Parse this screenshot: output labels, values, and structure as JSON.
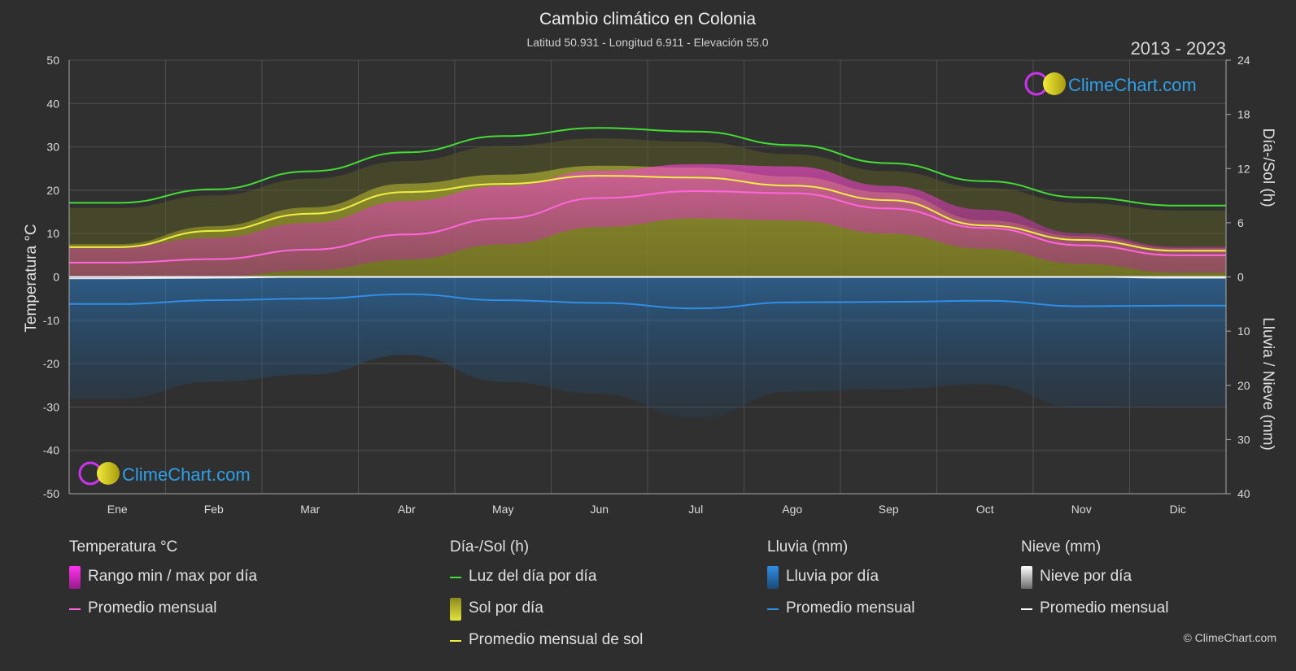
{
  "title": "Cambio climático en Colonia",
  "subtitle": "Latitud 50.931 - Longitud 6.911 - Elevación 55.0",
  "year_range": "2013 - 2023",
  "logo_text": "ClimeChart.com",
  "copyright": "© ClimeChart.com",
  "colors": {
    "background": "#2e2e2e",
    "daylight": "#44dd33",
    "sunshine_avg": "#eeee44",
    "temp_avg": "#ff66dd",
    "rain_avg": "#2f8ee6",
    "snow_avg": "#ffffff",
    "temp_range": "#ee33cc",
    "sun_fill": "#a6a628",
    "rain_fill": "#1f6fb0",
    "logo_text": "#2f9fe8"
  },
  "chart_data": {
    "type": "area",
    "x_categories": [
      "Ene",
      "Feb",
      "Mar",
      "Abr",
      "May",
      "Jun",
      "Jul",
      "Ago",
      "Sep",
      "Oct",
      "Nov",
      "Dic"
    ],
    "y_left": {
      "label": "Temperatura °C",
      "range": [
        -50,
        50
      ],
      "ticks": [
        "50",
        "40",
        "30",
        "20",
        "10",
        "0",
        "-10",
        "-20",
        "-30",
        "-40",
        "-50"
      ]
    },
    "y_right_top": {
      "label": "Día-/Sol (h)",
      "range": [
        0,
        24
      ],
      "ticks": [
        "24",
        "18",
        "12",
        "6",
        "0"
      ]
    },
    "y_right_bottom": {
      "label": "Lluvia / Nieve (mm)",
      "range": [
        0,
        40
      ],
      "ticks": [
        "0",
        "10",
        "20",
        "30",
        "40"
      ]
    },
    "grid": true,
    "series": [
      {
        "name": "Luz del día por día",
        "axis": "hours",
        "values": [
          8.2,
          9.7,
          11.7,
          13.8,
          15.6,
          16.5,
          16.1,
          14.6,
          12.6,
          10.6,
          8.8,
          7.9
        ]
      },
      {
        "name": "Promedio mensual de sol",
        "axis": "hours",
        "values": [
          3.3,
          5.1,
          7.0,
          9.4,
          10.3,
          11.2,
          11.0,
          10.1,
          8.5,
          5.7,
          4.1,
          2.9
        ]
      },
      {
        "name": "Temperatura promedio mensual",
        "axis": "temp",
        "values": [
          3.3,
          4.1,
          6.3,
          9.8,
          13.5,
          18.2,
          19.8,
          19.3,
          15.8,
          11.3,
          7.3,
          5.0
        ]
      },
      {
        "name": "Temperatura máxima diaria",
        "axis": "temp",
        "values": [
          7.0,
          9.0,
          12.5,
          17.5,
          21.0,
          24.5,
          26.0,
          25.5,
          21.0,
          15.5,
          10.0,
          7.0
        ]
      },
      {
        "name": "Temperatura mínima diaria",
        "axis": "temp",
        "values": [
          -0.5,
          0.0,
          1.5,
          4.0,
          7.5,
          11.5,
          13.5,
          13.0,
          10.0,
          6.5,
          3.0,
          1.0
        ]
      },
      {
        "name": "Lluvia promedio mensual",
        "axis": "precip",
        "values": [
          5.0,
          4.3,
          4.0,
          3.2,
          4.3,
          4.8,
          5.8,
          4.7,
          4.6,
          4.4,
          5.4,
          5.3
        ]
      },
      {
        "name": "Nieve promedio mensual",
        "axis": "precip",
        "values": [
          0.3,
          0.2,
          0.0,
          0.0,
          0.0,
          0.0,
          0.0,
          0.0,
          0.0,
          0.0,
          0.0,
          0.2
        ]
      }
    ]
  },
  "legend": [
    {
      "heading": "Temperatura °C",
      "items": [
        {
          "kind": "box",
          "color": "#e030d0",
          "label": "Rango min / max por día"
        },
        {
          "kind": "line",
          "color": "#ff66dd",
          "label": "Promedio mensual"
        }
      ]
    },
    {
      "heading": "Día-/Sol (h)",
      "items": [
        {
          "kind": "line",
          "color": "#44dd33",
          "label": "Luz del día por día"
        },
        {
          "kind": "box",
          "color": "#c8c830",
          "label": "Sol por día"
        },
        {
          "kind": "line",
          "color": "#eeee44",
          "label": "Promedio mensual de sol"
        }
      ]
    },
    {
      "heading": "Lluvia (mm)",
      "items": [
        {
          "kind": "box",
          "color": "#2f8ee6",
          "label": "Lluvia por día"
        },
        {
          "kind": "line",
          "color": "#2f8ee6",
          "label": "Promedio mensual"
        }
      ]
    },
    {
      "heading": "Nieve (mm)",
      "items": [
        {
          "kind": "box",
          "color": "#dddddd",
          "label": "Nieve por día"
        },
        {
          "kind": "line",
          "color": "#ffffff",
          "label": "Promedio mensual"
        }
      ]
    }
  ]
}
